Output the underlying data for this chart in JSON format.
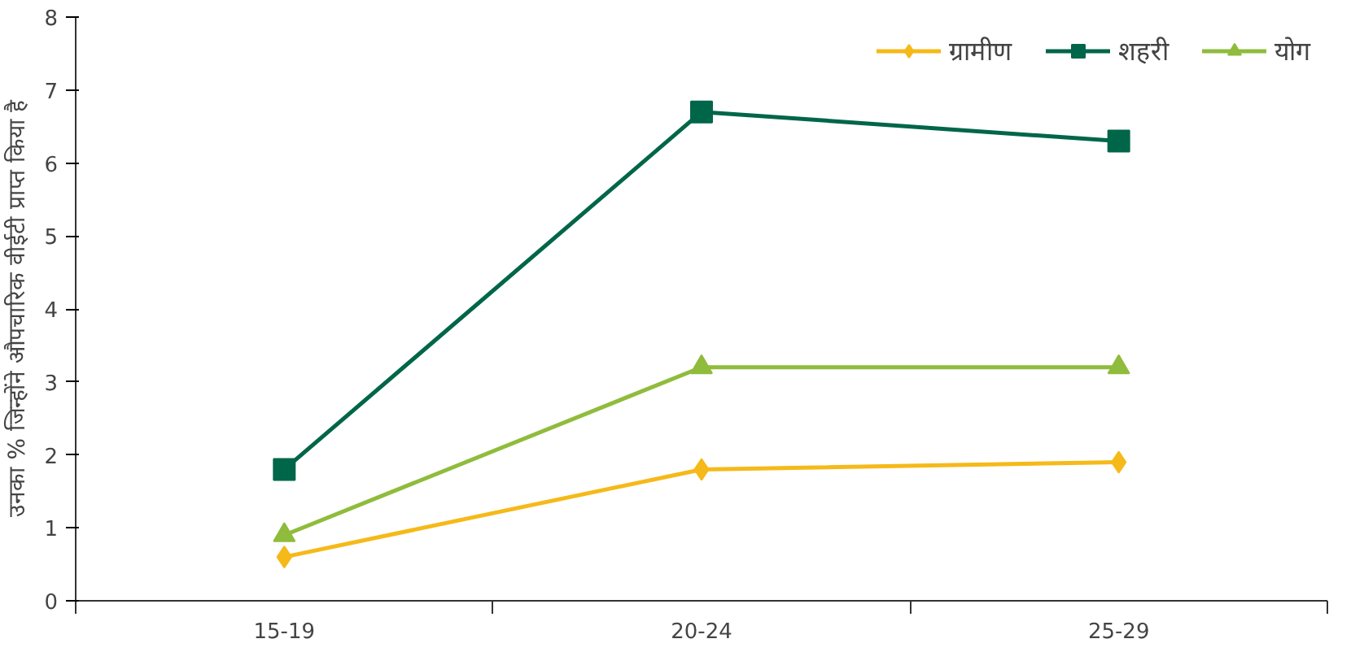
{
  "chart_data": {
    "type": "line",
    "ylabel": "उनका % जिन्होंने औपचारिक वीईटी प्राप्त किया है",
    "categories": [
      "15-19",
      "20-24",
      "25-29"
    ],
    "series": [
      {
        "name": "ग्रामीण",
        "color": "#f5b919",
        "marker": "diamond",
        "values": [
          0.6,
          1.8,
          1.9
        ]
      },
      {
        "name": "शहरी",
        "color": "#006649",
        "marker": "square",
        "values": [
          1.8,
          6.7,
          6.3
        ]
      },
      {
        "name": "योग",
        "color": "#8fbc3c",
        "marker": "triangle",
        "values": [
          0.9,
          3.2,
          3.2
        ]
      }
    ],
    "ylim": [
      0,
      8
    ],
    "yticks": [
      0,
      1,
      2,
      3,
      4,
      5,
      6,
      7,
      8
    ],
    "grid": false,
    "legend": "top right"
  }
}
